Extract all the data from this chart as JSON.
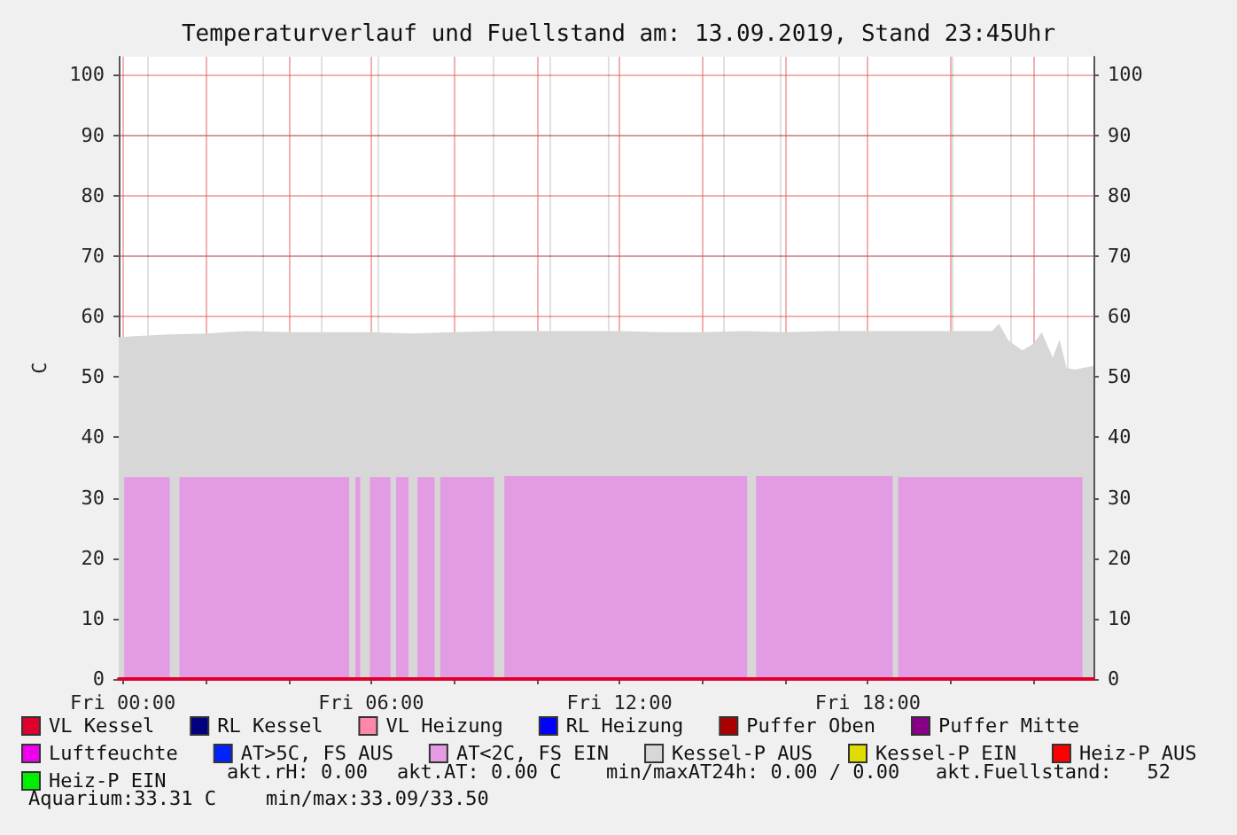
{
  "chart_data": {
    "type": "area",
    "title": "Temperaturverlauf und Fuellstand am: 13.09.2019, Stand 23:45Uhr",
    "ylabel": "C",
    "xlim": [
      "2019-09-12T23:54",
      "2019-09-13T23:27"
    ],
    "xticks": [
      {
        "value": "2019-09-13T00:00",
        "label": "Fri 00:00"
      },
      {
        "value": "2019-09-13T02:00",
        "label": null
      },
      {
        "value": "2019-09-13T04:00",
        "label": null
      },
      {
        "value": "2019-09-13T06:00",
        "label": "Fri 06:00"
      },
      {
        "value": "2019-09-13T08:00",
        "label": null
      },
      {
        "value": "2019-09-13T10:00",
        "label": null
      },
      {
        "value": "2019-09-13T12:00",
        "label": "Fri 12:00"
      },
      {
        "value": "2019-09-13T14:00",
        "label": null
      },
      {
        "value": "2019-09-13T16:00",
        "label": null
      },
      {
        "value": "2019-09-13T18:00",
        "label": "Fri 18:00"
      },
      {
        "value": "2019-09-13T20:00",
        "label": null
      },
      {
        "value": "2019-09-13T22:00",
        "label": null
      }
    ],
    "ylim": [
      0,
      103
    ],
    "yticks": [
      0,
      10,
      20,
      30,
      40,
      50,
      60,
      70,
      80,
      90,
      100
    ],
    "y2lim": [
      0,
      103
    ],
    "y2ticks": [
      0,
      10,
      20,
      30,
      40,
      50,
      60,
      70,
      80,
      90,
      100
    ],
    "grid": true,
    "legend": "bottom",
    "marker": "none",
    "annotations": [
      "akt.rH: 0.00",
      "akt.AT: 0.00 C",
      "min/maxAT24h: 0.00 / 0.00",
      "akt.Fuellstand:   52",
      "Aquarium:33.31 C",
      "min/max:33.09/33.50"
    ],
    "series": [
      {
        "name": "VL Kessel",
        "color": "#e00030",
        "type": "line",
        "x": [
          "2019-09-12T23:54",
          "2019-09-13T23:27"
        ],
        "values": [
          0,
          0
        ]
      },
      {
        "name": "RL Kessel",
        "color": "#000080",
        "type": "line"
      },
      {
        "name": "VL Heizung",
        "color": "#ff88aa",
        "type": "line"
      },
      {
        "name": "RL Heizung",
        "color": "#0000ff",
        "type": "line"
      },
      {
        "name": "Puffer Oben",
        "color": "#aa0000",
        "type": "line"
      },
      {
        "name": "Puffer Mitte",
        "color": "#880088",
        "type": "line"
      },
      {
        "name": "Luftfeuchte",
        "color": "#ee00ee",
        "type": "line"
      },
      {
        "name": "AT>5C, FS AUS",
        "color": "#0022ff",
        "type": "line"
      },
      {
        "name": "AT<2C, FS EIN",
        "color": "#e39be3",
        "x": [
          "2019-09-13T00:02",
          "2019-09-13T01:08",
          "2019-09-13T01:15",
          "2019-09-13T01:22",
          "2019-09-13T05:28",
          "2019-09-13T05:32",
          "2019-09-13T05:37",
          "2019-09-13T05:44",
          "2019-09-13T05:51",
          "2019-09-13T05:58",
          "2019-09-13T06:28",
          "2019-09-13T06:32",
          "2019-09-13T06:36",
          "2019-09-13T06:54",
          "2019-09-13T07:00",
          "2019-09-13T07:07",
          "2019-09-13T07:32",
          "2019-09-13T07:36",
          "2019-09-13T07:40",
          "2019-09-13T08:58",
          "2019-09-13T09:06",
          "2019-09-13T09:13",
          "2019-09-13T15:05",
          "2019-09-13T15:12",
          "2019-09-13T15:18",
          "2019-09-13T18:36",
          "2019-09-13T18:40",
          "2019-09-13T18:44",
          "2019-09-13T23:11"
        ],
        "values": [
          33.4,
          33.4,
          null,
          33.4,
          33.4,
          null,
          33.4,
          33.4,
          null,
          33.4,
          33.4,
          null,
          33.4,
          33.4,
          null,
          33.4,
          33.4,
          null,
          33.4,
          33.4,
          null,
          33.6,
          33.6,
          null,
          33.6,
          33.6,
          null,
          33.4,
          33.4
        ]
      },
      {
        "name": "Kessel-P AUS",
        "color": "#d7d7d7",
        "x": [
          "2019-09-12T23:54",
          "2019-09-13T01:00",
          "2019-09-13T02:00",
          "2019-09-13T03:00",
          "2019-09-13T04:00",
          "2019-09-13T05:00",
          "2019-09-13T06:00",
          "2019-09-13T07:00",
          "2019-09-13T08:00",
          "2019-09-13T09:00",
          "2019-09-13T10:00",
          "2019-09-13T11:00",
          "2019-09-13T12:00",
          "2019-09-13T13:00",
          "2019-09-13T14:00",
          "2019-09-13T15:00",
          "2019-09-13T16:00",
          "2019-09-13T17:00",
          "2019-09-13T18:00",
          "2019-09-13T19:00",
          "2019-09-13T20:00",
          "2019-09-13T21:00",
          "2019-09-13T21:10",
          "2019-09-13T21:24",
          "2019-09-13T21:44",
          "2019-09-13T22:00",
          "2019-09-13T22:12",
          "2019-09-13T22:28",
          "2019-09-13T22:38",
          "2019-09-13T22:48",
          "2019-09-13T23:00",
          "2019-09-13T23:12",
          "2019-09-13T23:27"
        ],
        "values": [
          56.6,
          57,
          57.2,
          57.6,
          57.4,
          57.4,
          57.4,
          57.2,
          57.4,
          57.6,
          57.6,
          57.6,
          57.6,
          57.4,
          57.4,
          57.6,
          57.4,
          57.6,
          57.6,
          57.6,
          57.6,
          57.6,
          58.8,
          56,
          54.4,
          55.5,
          57.4,
          53.2,
          56.2,
          51.5,
          51.2,
          51.5,
          51.8
        ]
      },
      {
        "name": "Kessel-P EIN",
        "color": "#dddd00",
        "type": "line"
      },
      {
        "name": "Heiz-P AUS",
        "color": "#ff0000",
        "type": "line"
      },
      {
        "name": "Heiz-P EIN",
        "color": "#00ee00",
        "type": "line"
      }
    ]
  }
}
